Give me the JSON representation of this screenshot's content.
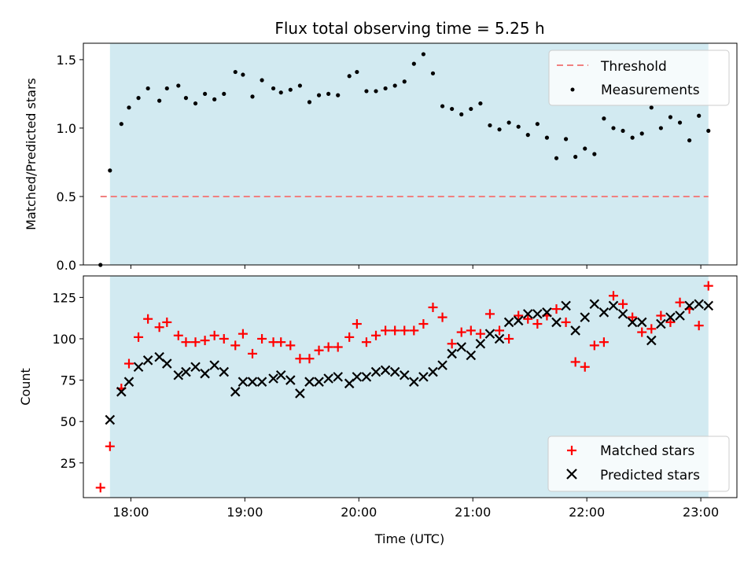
{
  "chart_data": [
    {
      "type": "scatter",
      "title": "Flux total observing time = 5.25 h",
      "xlabel": "",
      "ylabel": "Matched/Predicted stars",
      "xlim": [
        "17:35",
        "23:19"
      ],
      "ylim": [
        0.0,
        1.62
      ],
      "yticks": [
        "0.0",
        "0.5",
        "1.0",
        "1.5"
      ],
      "shaded_span": [
        "17:49",
        "23:04"
      ],
      "shade_color": "#add8e6",
      "threshold": {
        "name": "Threshold",
        "value": 0.5,
        "color": "#f08080"
      },
      "legend_position": "top-right",
      "series": [
        {
          "name": "Measurements",
          "color": "#000000",
          "marker": "dot",
          "x": [
            "17:44",
            "17:49",
            "17:55",
            "17:59",
            "18:04",
            "18:09",
            "18:15",
            "18:19",
            "18:25",
            "18:29",
            "18:34",
            "18:39",
            "18:44",
            "18:49",
            "18:55",
            "18:59",
            "19:04",
            "19:09",
            "19:15",
            "19:19",
            "19:24",
            "19:29",
            "19:34",
            "19:39",
            "19:44",
            "19:49",
            "19:55",
            "19:59",
            "20:04",
            "20:09",
            "20:14",
            "20:19",
            "20:24",
            "20:29",
            "20:34",
            "20:39",
            "20:44",
            "20:49",
            "20:54",
            "20:59",
            "21:04",
            "21:09",
            "21:14",
            "21:19",
            "21:24",
            "21:29",
            "21:34",
            "21:39",
            "21:44",
            "21:49",
            "21:54",
            "21:59",
            "22:04",
            "22:09",
            "22:14",
            "22:19",
            "22:24",
            "22:29",
            "22:34",
            "22:39",
            "22:44",
            "22:49",
            "22:54",
            "22:59",
            "23:04"
          ],
          "y": [
            0.0,
            0.69,
            1.03,
            1.15,
            1.22,
            1.29,
            1.2,
            1.29,
            1.31,
            1.22,
            1.18,
            1.25,
            1.21,
            1.25,
            1.41,
            1.39,
            1.23,
            1.35,
            1.29,
            1.26,
            1.28,
            1.31,
            1.19,
            1.24,
            1.25,
            1.24,
            1.38,
            1.41,
            1.27,
            1.27,
            1.29,
            1.31,
            1.34,
            1.47,
            1.54,
            1.4,
            1.16,
            1.14,
            1.1,
            1.14,
            1.18,
            1.02,
            0.99,
            1.04,
            1.01,
            0.95,
            1.03,
            0.93,
            0.78,
            0.92,
            0.79,
            0.85,
            0.81,
            1.07,
            1.0,
            0.98,
            0.93,
            0.96,
            1.15,
            1.0,
            1.08,
            1.04,
            0.91,
            1.09,
            0.98
          ]
        }
      ]
    },
    {
      "type": "scatter",
      "title": "",
      "xlabel": "Time (UTC)",
      "ylabel": "Count",
      "xlim": [
        "17:35",
        "23:19"
      ],
      "ylim": [
        4,
        138
      ],
      "yticks": [
        "25",
        "50",
        "75",
        "100",
        "125"
      ],
      "xticks": [
        "18:00",
        "19:00",
        "20:00",
        "21:00",
        "22:00",
        "23:00"
      ],
      "shaded_span": [
        "17:49",
        "23:04"
      ],
      "shade_color": "#add8e6",
      "legend_position": "bottom-right",
      "series": [
        {
          "name": "Matched stars",
          "color": "#ff0000",
          "marker": "plus",
          "x": [
            "17:44",
            "17:49",
            "17:55",
            "17:59",
            "18:04",
            "18:09",
            "18:15",
            "18:19",
            "18:25",
            "18:29",
            "18:34",
            "18:39",
            "18:44",
            "18:49",
            "18:55",
            "18:59",
            "19:04",
            "19:09",
            "19:15",
            "19:19",
            "19:24",
            "19:29",
            "19:34",
            "19:39",
            "19:44",
            "19:49",
            "19:55",
            "19:59",
            "20:04",
            "20:09",
            "20:14",
            "20:19",
            "20:24",
            "20:29",
            "20:34",
            "20:39",
            "20:44",
            "20:49",
            "20:54",
            "20:59",
            "21:04",
            "21:09",
            "21:14",
            "21:19",
            "21:24",
            "21:29",
            "21:34",
            "21:39",
            "21:44",
            "21:49",
            "21:54",
            "21:59",
            "22:04",
            "22:09",
            "22:14",
            "22:19",
            "22:24",
            "22:29",
            "22:34",
            "22:39",
            "22:44",
            "22:49",
            "22:54",
            "22:59",
            "23:04"
          ],
          "y": [
            10,
            35,
            70,
            85,
            101,
            112,
            107,
            110,
            102,
            98,
            98,
            99,
            102,
            100,
            96,
            103,
            91,
            100,
            98,
            98,
            96,
            88,
            88,
            93,
            95,
            95,
            101,
            109,
            98,
            102,
            105,
            105,
            105,
            105,
            109,
            119,
            113,
            97,
            104,
            105,
            103,
            115,
            105,
            100,
            114,
            112,
            109,
            114,
            118,
            110,
            86,
            83,
            96,
            98,
            126,
            121,
            113,
            104,
            106,
            114,
            110,
            122,
            118,
            108,
            132
          ]
        },
        {
          "name": "Predicted stars",
          "color": "#000000",
          "marker": "x",
          "x": [
            "17:49",
            "17:55",
            "17:59",
            "18:04",
            "18:09",
            "18:15",
            "18:19",
            "18:25",
            "18:29",
            "18:34",
            "18:39",
            "18:44",
            "18:49",
            "18:55",
            "18:59",
            "19:04",
            "19:09",
            "19:15",
            "19:19",
            "19:24",
            "19:29",
            "19:34",
            "19:39",
            "19:44",
            "19:49",
            "19:55",
            "19:59",
            "20:04",
            "20:09",
            "20:14",
            "20:19",
            "20:24",
            "20:29",
            "20:34",
            "20:39",
            "20:44",
            "20:49",
            "20:54",
            "20:59",
            "21:04",
            "21:09",
            "21:14",
            "21:19",
            "21:24",
            "21:29",
            "21:34",
            "21:39",
            "21:44",
            "21:49",
            "21:54",
            "21:59",
            "22:04",
            "22:09",
            "22:14",
            "22:19",
            "22:24",
            "22:29",
            "22:34",
            "22:39",
            "22:44",
            "22:49",
            "22:54",
            "22:59",
            "23:04"
          ],
          "y": [
            51,
            68,
            74,
            83,
            87,
            89,
            85,
            78,
            80,
            83,
            79,
            84,
            80,
            68,
            74,
            74,
            74,
            76,
            78,
            75,
            67,
            74,
            74,
            76,
            77,
            73,
            77,
            77,
            80,
            81,
            80,
            78,
            74,
            77,
            80,
            84,
            91,
            95,
            90,
            97,
            103,
            100,
            110,
            111,
            115,
            115,
            116,
            110,
            120,
            105,
            113,
            121,
            116,
            120,
            115,
            110,
            110,
            99,
            109,
            113,
            114,
            120,
            121,
            120
          ]
        }
      ]
    }
  ]
}
